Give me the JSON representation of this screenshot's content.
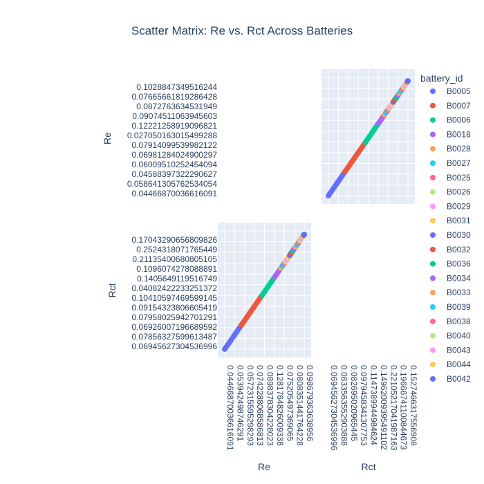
{
  "chart_data": {
    "type": "scatter",
    "title": "Scatter Matrix: Re vs. Rct Across Batteries",
    "dimensions": [
      "Re",
      "Rct"
    ],
    "legend_title": "battery_id",
    "legend_placement": "right",
    "grid": true,
    "background": "#e5ecf6",
    "re_tick_labels_y": [
      "0.102884734951624​4",
      "0.0766566181928642​8",
      "0.0872763634531949",
      "0.0907451106394560​3",
      "0.122212589190968​21",
      "0.0270501630154992​88",
      "0.0791409953998212​2",
      "0.0698128402490029​7",
      "0.0600951025245409​4",
      "0.0458839732229062​7",
      "0.0586413057625340​54",
      "0.0446687003661609​1"
    ],
    "rct_tick_labels_y": [
      "0.17043290656809826",
      "0.2524318071765449",
      "0.2113540068080510​5",
      "0.1096074278088891",
      "0.1405649119516749",
      "0.0408242223325137​2",
      "0.1041059746959914​5",
      "0.0915432380660541​9",
      "0.0795802594270129​1",
      "0.0692600719668959​2",
      "0.0785632759961348​7",
      "0.06945627304536996"
    ],
    "re_tick_labels_x": [
      "0.04466870036616091",
      "0.05394249874629​1",
      "0.05723155952982​93",
      "0.07422880685868​13",
      "0.08983783042280​23",
      "0.12817648260093​38",
      "0.07520549736906​5",
      "0.08083514417642​28",
      "0.09867936363895​6"
    ],
    "rct_tick_labels_x": [
      "0.06945627304536996",
      "0.08335635529​03888",
      "0.08269502096​5445",
      "0.09794583413​07753",
      "0.11473899449​84624",
      "0.14962009395​491102",
      "0.22105217041​987163",
      "0.19666741100​844673",
      "0.15274663175​56908"
    ],
    "series": [
      {
        "name": "B0005",
        "color": "#636efa",
        "re_range": [
          0.0447,
          0.056
        ]
      },
      {
        "name": "B0007",
        "color": "#EF553B",
        "re_range": [
          0.056,
          0.07
        ]
      },
      {
        "name": "B0006",
        "color": "#00cc96",
        "re_range": [
          0.07,
          0.079
        ]
      },
      {
        "name": "B0018",
        "color": "#ab63fa",
        "re_range": [
          0.079,
          0.083
        ]
      },
      {
        "name": "B0028",
        "color": "#FFA15A",
        "re_range": [
          0.083,
          0.084
        ]
      },
      {
        "name": "B0027",
        "color": "#19d3f3",
        "re_range": [
          0.084,
          0.085
        ]
      },
      {
        "name": "B0025",
        "color": "#FF6692",
        "re_range": [
          0.085,
          0.086
        ]
      },
      {
        "name": "B0026",
        "color": "#B6E880",
        "re_range": [
          0.086,
          0.087
        ]
      },
      {
        "name": "B0029",
        "color": "#FF97FF",
        "re_range": [
          0.087,
          0.088
        ]
      },
      {
        "name": "B0031",
        "color": "#FECB52",
        "re_range": [
          0.088,
          0.089
        ]
      },
      {
        "name": "B0030",
        "color": "#636efa",
        "re_range": [
          0.089,
          0.09
        ]
      },
      {
        "name": "B0032",
        "color": "#EF553B",
        "re_range": [
          0.09,
          0.091
        ]
      },
      {
        "name": "B0036",
        "color": "#00cc96",
        "re_range": [
          0.091,
          0.092
        ]
      },
      {
        "name": "B0034",
        "color": "#ab63fa",
        "re_range": [
          0.092,
          0.093
        ]
      },
      {
        "name": "B0033",
        "color": "#FFA15A",
        "re_range": [
          0.093,
          0.094
        ]
      },
      {
        "name": "B0039",
        "color": "#19d3f3",
        "re_range": [
          0.094,
          0.095
        ]
      },
      {
        "name": "B0038",
        "color": "#FF6692",
        "re_range": [
          0.095,
          0.096
        ]
      },
      {
        "name": "B0040",
        "color": "#B6E880",
        "re_range": [
          0.096,
          0.097
        ]
      },
      {
        "name": "B0043",
        "color": "#FF97FF",
        "re_range": [
          0.097,
          0.098
        ]
      },
      {
        "name": "B0044",
        "color": "#FECB52",
        "re_range": [
          0.098,
          0.0986
        ]
      },
      {
        "name": "B0042",
        "color": "#636efa",
        "re_range": [
          0.0986,
          0.099
        ]
      }
    ]
  }
}
